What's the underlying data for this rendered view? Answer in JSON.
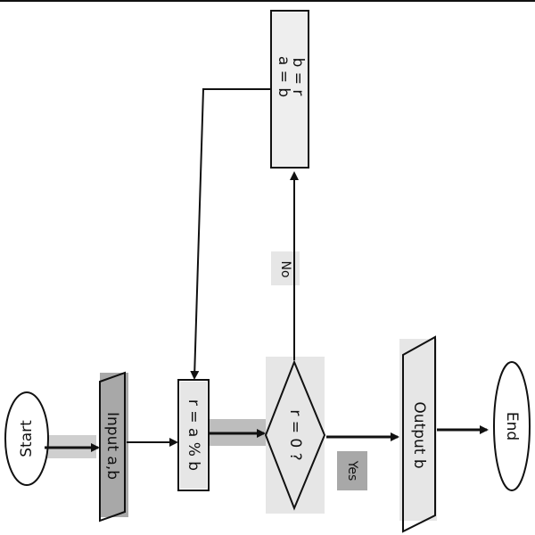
{
  "diagram": {
    "nodes": {
      "start": {
        "label": "Start"
      },
      "input": {
        "label": "Input a,b"
      },
      "remainder": {
        "label": "r = a % b"
      },
      "decision": {
        "label": "r = 0 ?"
      },
      "swap": {
        "line1": "a = b",
        "line2": "b = r"
      },
      "output": {
        "label": "Output b"
      },
      "end": {
        "label": "End"
      }
    },
    "edges": {
      "no_label": "No",
      "yes_label": "Yes"
    },
    "colors": {
      "ink": "#111111",
      "shade_light": "#e6e6e6",
      "shade_mid": "#c8c8c8",
      "shade_dark": "#a8a8a8"
    }
  }
}
